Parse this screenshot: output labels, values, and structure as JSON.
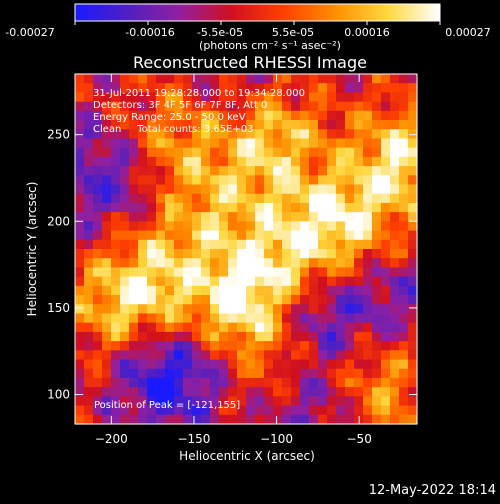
{
  "colorbar": {
    "tick_labels": [
      "-0.00027",
      "-0.00016",
      "-5.5e-05",
      "5.5e-05",
      "0.00016",
      "0.00027"
    ],
    "unit_label": "(photons cm⁻² s⁻¹ asec⁻²)",
    "range": [
      -0.00027,
      0.00027
    ],
    "colors": [
      "#1a1aff",
      "#5020c0",
      "#9020a0",
      "#d01020",
      "#ff4000",
      "#ff9000",
      "#ffd840",
      "#ffffff"
    ]
  },
  "chart_data": {
    "type": "heatmap",
    "title": "Reconstructed RHESSI Image",
    "xlabel": "Heliocentric X (arcsec)",
    "ylabel": "Heliocentric Y (arcsec)",
    "xlim": [
      -222,
      -15
    ],
    "ylim": [
      83,
      285
    ],
    "x_ticks": [
      -200,
      -150,
      -100,
      -50
    ],
    "y_ticks": [
      100,
      150,
      200,
      250
    ],
    "annotations": [
      "31-Jul-2011 19:28:28.000 to 19:34:28.000",
      "Detectors: 3F 4F 5F 6F 7F 8F, Att 0",
      "Energy Range: 25.0 - 50.0 keV",
      "Clean     Total counts: 3.65E+03"
    ],
    "peak_label": "Position of Peak = [-121,155]",
    "peak": [
      -121,
      155
    ],
    "hot_spots": [
      {
        "x": -121,
        "y": 155,
        "v": 1.0
      },
      {
        "x": -105,
        "y": 245,
        "v": 0.85
      },
      {
        "x": -25,
        "y": 235,
        "v": 0.9
      },
      {
        "x": -175,
        "y": 165,
        "v": 0.75
      },
      {
        "x": -60,
        "y": 200,
        "v": 0.8
      },
      {
        "x": -140,
        "y": 205,
        "v": 0.55
      },
      {
        "x": -160,
        "y": 250,
        "v": 0.6
      },
      {
        "x": -200,
        "y": 150,
        "v": 0.5
      },
      {
        "x": -90,
        "y": 185,
        "v": 0.6
      },
      {
        "x": -45,
        "y": 130,
        "v": 0.55
      },
      {
        "x": -35,
        "y": 95,
        "v": 0.45
      },
      {
        "x": -95,
        "y": 120,
        "v": 0.45
      }
    ],
    "cold_spots": [
      {
        "x": -165,
        "y": 110,
        "v": -0.9
      },
      {
        "x": -70,
        "y": 140,
        "v": -0.85
      },
      {
        "x": -205,
        "y": 225,
        "v": -0.6
      },
      {
        "x": -80,
        "y": 90,
        "v": -0.5
      },
      {
        "x": -30,
        "y": 150,
        "v": -0.55
      },
      {
        "x": -130,
        "y": 270,
        "v": -0.3
      }
    ]
  },
  "footer": {
    "date": "12-May-2022 18:14"
  }
}
